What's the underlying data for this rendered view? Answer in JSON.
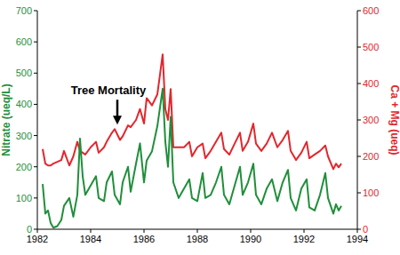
{
  "chart_data": {
    "type": "line",
    "x_label": null,
    "x": [
      1982.2,
      1982.3,
      1982.4,
      1982.5,
      1982.6,
      1982.75,
      1982.9,
      1983.0,
      1983.2,
      1983.35,
      1983.5,
      1983.6,
      1983.7,
      1983.8,
      1984.0,
      1984.2,
      1984.3,
      1984.5,
      1984.6,
      1984.8,
      1984.9,
      1985.1,
      1985.2,
      1985.4,
      1985.5,
      1985.7,
      1985.85,
      1986.0,
      1986.1,
      1986.3,
      1986.5,
      1986.7,
      1986.8,
      1986.9,
      1987.0,
      1987.1,
      1987.3,
      1987.5,
      1987.7,
      1987.8,
      1988.0,
      1988.2,
      1988.3,
      1988.5,
      1988.7,
      1988.9,
      1989.0,
      1989.2,
      1989.4,
      1989.6,
      1989.7,
      1989.9,
      1990.1,
      1990.2,
      1990.4,
      1990.6,
      1990.8,
      1991.0,
      1991.2,
      1991.4,
      1991.5,
      1991.7,
      1991.9,
      1992.1,
      1992.2,
      1992.4,
      1992.6,
      1992.8,
      1992.9,
      1993.1,
      1993.2,
      1993.3,
      1993.4
    ],
    "series": [
      {
        "name": "Nitrate (ueq/L)",
        "color": "#1f8f3a",
        "values": [
          145,
          50,
          60,
          20,
          5,
          10,
          30,
          75,
          100,
          40,
          110,
          290,
          170,
          110,
          140,
          170,
          100,
          90,
          150,
          185,
          110,
          80,
          150,
          200,
          120,
          210,
          275,
          150,
          220,
          250,
          330,
          450,
          280,
          200,
          360,
          150,
          100,
          130,
          160,
          100,
          90,
          180,
          100,
          110,
          150,
          200,
          110,
          80,
          140,
          200,
          110,
          150,
          210,
          110,
          80,
          130,
          160,
          90,
          150,
          190,
          100,
          60,
          130,
          160,
          70,
          60,
          110,
          180,
          100,
          50,
          80,
          60,
          75
        ]
      },
      {
        "name": "Ca + Mg (ueq)",
        "color": "#e3262d",
        "axis": "y2",
        "values": [
          220,
          180,
          175,
          175,
          180,
          185,
          190,
          215,
          175,
          200,
          240,
          215,
          210,
          205,
          225,
          240,
          210,
          225,
          240,
          265,
          275,
          245,
          255,
          285,
          280,
          300,
          330,
          290,
          360,
          340,
          370,
          480,
          330,
          300,
          385,
          225,
          225,
          225,
          240,
          200,
          225,
          235,
          195,
          215,
          240,
          265,
          220,
          205,
          235,
          265,
          215,
          240,
          290,
          235,
          215,
          235,
          265,
          225,
          245,
          270,
          215,
          190,
          210,
          240,
          195,
          205,
          215,
          230,
          200,
          165,
          180,
          170,
          180
        ]
      }
    ],
    "xlim": [
      1982,
      1994
    ],
    "xticks": [
      1982,
      1984,
      1986,
      1988,
      1990,
      1992,
      1994
    ],
    "ylim": [
      0,
      700
    ],
    "yticks": [
      0,
      100,
      200,
      300,
      400,
      500,
      600,
      700
    ],
    "y2lim": [
      0,
      600
    ],
    "y2ticks": [
      0,
      100,
      200,
      300,
      400,
      500,
      600
    ],
    "annotations": [
      {
        "text": "Tree Mortality",
        "x": 1985,
        "y": 335
      }
    ],
    "grid": false
  }
}
